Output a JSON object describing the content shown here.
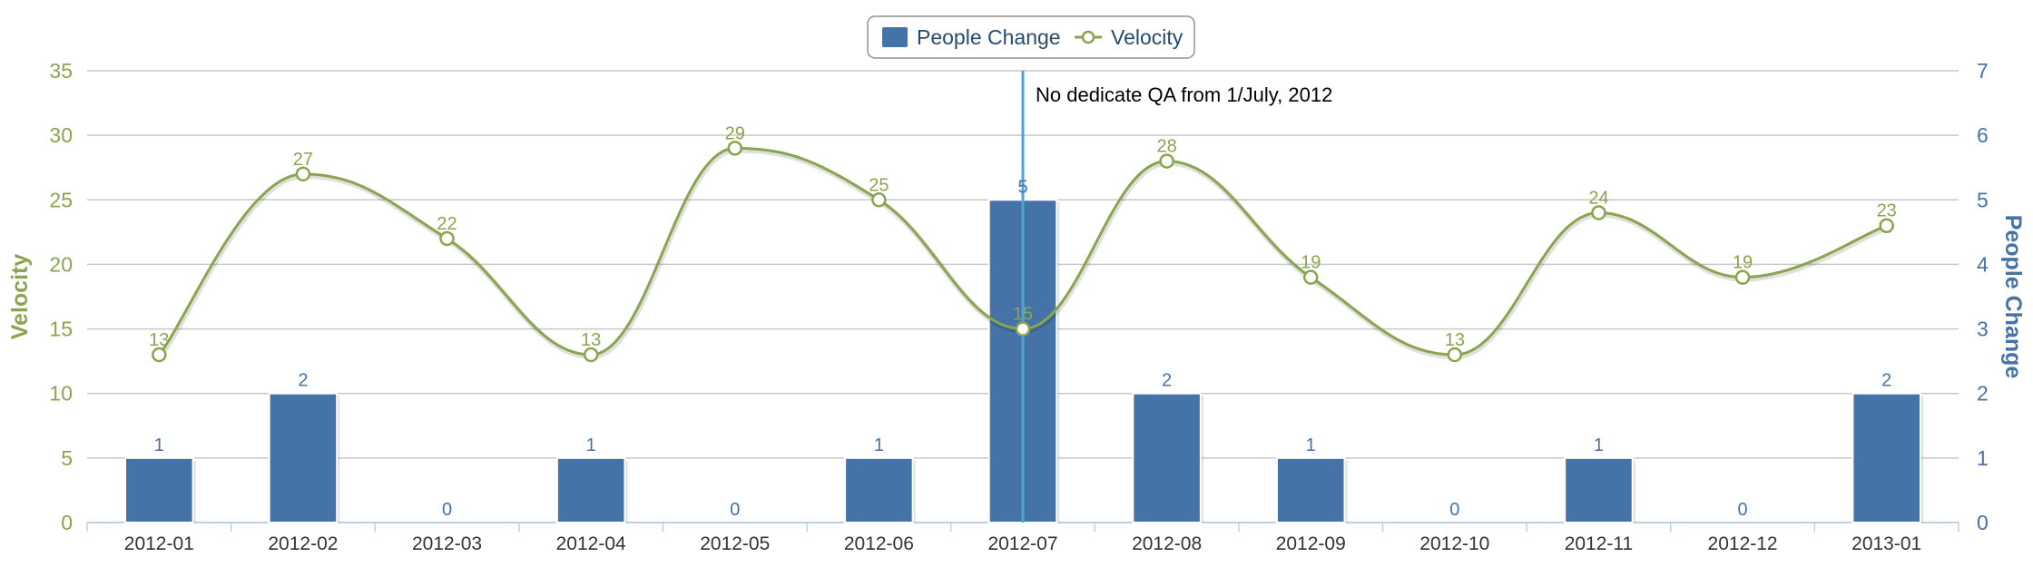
{
  "chart_data": {
    "type": "bar",
    "categories": [
      "2012-01",
      "2012-02",
      "2012-03",
      "2012-04",
      "2012-05",
      "2012-06",
      "2012-07",
      "2012-08",
      "2012-09",
      "2012-10",
      "2012-11",
      "2012-12",
      "2013-01"
    ],
    "series": [
      {
        "name": "People Change",
        "type": "bar",
        "axis": "right",
        "color": "#4572a7",
        "values": [
          1,
          2,
          0,
          1,
          0,
          1,
          5,
          2,
          1,
          0,
          1,
          0,
          2
        ]
      },
      {
        "name": "Velocity",
        "type": "line",
        "axis": "left",
        "color": "#89a54e",
        "values": [
          13,
          27,
          22,
          13,
          29,
          25,
          15,
          28,
          19,
          13,
          24,
          19,
          23
        ]
      }
    ],
    "left_axis": {
      "label": "Velocity",
      "range": [
        0,
        35
      ],
      "ticks": [
        "0",
        "5",
        "10",
        "15",
        "20",
        "25",
        "30",
        "35"
      ]
    },
    "right_axis": {
      "label": "People Change",
      "range": [
        0,
        7
      ],
      "ticks": [
        "0",
        "1",
        "2",
        "3",
        "4",
        "5",
        "6",
        "7"
      ]
    },
    "annotation": {
      "text": "No dedicate QA from 1/July, 2012",
      "at_x": 6.5,
      "color": "#4ea3d9"
    },
    "legend": {
      "placement": "top-center"
    },
    "grid": true
  }
}
